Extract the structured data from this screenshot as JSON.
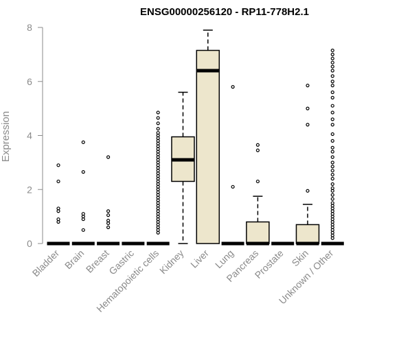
{
  "chart_data": {
    "type": "boxplot",
    "title": "ENSG00000256120 - RP11-778H2.1",
    "xlabel": "",
    "ylabel": "Expression",
    "ylim": [
      0,
      8
    ],
    "yticks": [
      0,
      2,
      4,
      6,
      8
    ],
    "box_fill": "#ede6cc",
    "categories": [
      "Bladder",
      "Brain",
      "Breast",
      "Gastric",
      "Hematopoietic cells",
      "Kidney",
      "Liver",
      "Lung",
      "Pancreas",
      "Prostate",
      "Skin",
      "Unknown / Other"
    ],
    "boxes": [
      {
        "name": "Bladder",
        "whisker_low": 0,
        "q1": 0,
        "median": 0,
        "q3": 0,
        "whisker_high": 0,
        "outliers": [
          2.9,
          2.3,
          1.3,
          1.2,
          0.9,
          0.8
        ]
      },
      {
        "name": "Brain",
        "whisker_low": 0,
        "q1": 0,
        "median": 0,
        "q3": 0,
        "whisker_high": 0,
        "outliers": [
          3.75,
          2.65,
          1.1,
          1.0,
          0.9,
          0.5
        ]
      },
      {
        "name": "Breast",
        "whisker_low": 0,
        "q1": 0,
        "median": 0,
        "q3": 0,
        "whisker_high": 0,
        "outliers": [
          3.2,
          1.2,
          1.05,
          0.85,
          0.75,
          0.6
        ]
      },
      {
        "name": "Gastric",
        "whisker_low": 0,
        "q1": 0,
        "median": 0,
        "q3": 0,
        "whisker_high": 0,
        "outliers": []
      },
      {
        "name": "Hematopoietic cells",
        "whisker_low": 0,
        "q1": 0,
        "median": 0,
        "q3": 0,
        "whisker_high": 0,
        "outliers": [
          4.85,
          4.65,
          4.45,
          4.25,
          4.1,
          4.0,
          3.9,
          3.8,
          3.7,
          3.6,
          3.5,
          3.4,
          3.3,
          3.2,
          3.1,
          3.0,
          2.9,
          2.8,
          2.7,
          2.6,
          2.5,
          2.4,
          2.3,
          2.2,
          2.1,
          2.0,
          1.9,
          1.8,
          1.7,
          1.6,
          1.5,
          1.4,
          1.3,
          1.2,
          1.1,
          1.0,
          0.9,
          0.8,
          0.7,
          0.6,
          0.5,
          0.4
        ]
      },
      {
        "name": "Kidney",
        "whisker_low": 0,
        "q1": 2.3,
        "median": 3.1,
        "q3": 3.95,
        "whisker_high": 5.6,
        "outliers": []
      },
      {
        "name": "Liver",
        "whisker_low": 0,
        "q1": 0,
        "median": 6.4,
        "q3": 7.15,
        "whisker_high": 7.9,
        "outliers": []
      },
      {
        "name": "Lung",
        "whisker_low": 0,
        "q1": 0,
        "median": 0,
        "q3": 0,
        "whisker_high": 0,
        "outliers": [
          5.8,
          2.1
        ]
      },
      {
        "name": "Pancreas",
        "whisker_low": 0,
        "q1": 0,
        "median": 0,
        "q3": 0.8,
        "whisker_high": 1.75,
        "outliers": [
          3.65,
          3.45,
          2.3
        ]
      },
      {
        "name": "Prostate",
        "whisker_low": 0,
        "q1": 0,
        "median": 0,
        "q3": 0,
        "whisker_high": 0,
        "outliers": []
      },
      {
        "name": "Skin",
        "whisker_low": 0,
        "q1": 0,
        "median": 0,
        "q3": 0.7,
        "whisker_high": 1.45,
        "outliers": [
          5.85,
          5.0,
          4.4,
          1.95
        ]
      },
      {
        "name": "Unknown / Other",
        "whisker_low": 0,
        "q1": 0,
        "median": 0,
        "q3": 0,
        "whisker_high": 0,
        "outliers": [
          7.15,
          7.0,
          6.85,
          6.7,
          6.55,
          6.4,
          6.2,
          6.0,
          5.85,
          5.6,
          5.4,
          5.1,
          4.85,
          4.6,
          4.4,
          4.05,
          3.8,
          3.55,
          3.4,
          3.2,
          3.0,
          2.85,
          2.7,
          2.55,
          2.4,
          2.2,
          2.05,
          1.95,
          1.8,
          1.65,
          1.5,
          1.4,
          1.3,
          1.2,
          1.1,
          1.0,
          0.9,
          0.8,
          0.7,
          0.6,
          0.5,
          0.4,
          0.3,
          0.2
        ]
      }
    ]
  }
}
